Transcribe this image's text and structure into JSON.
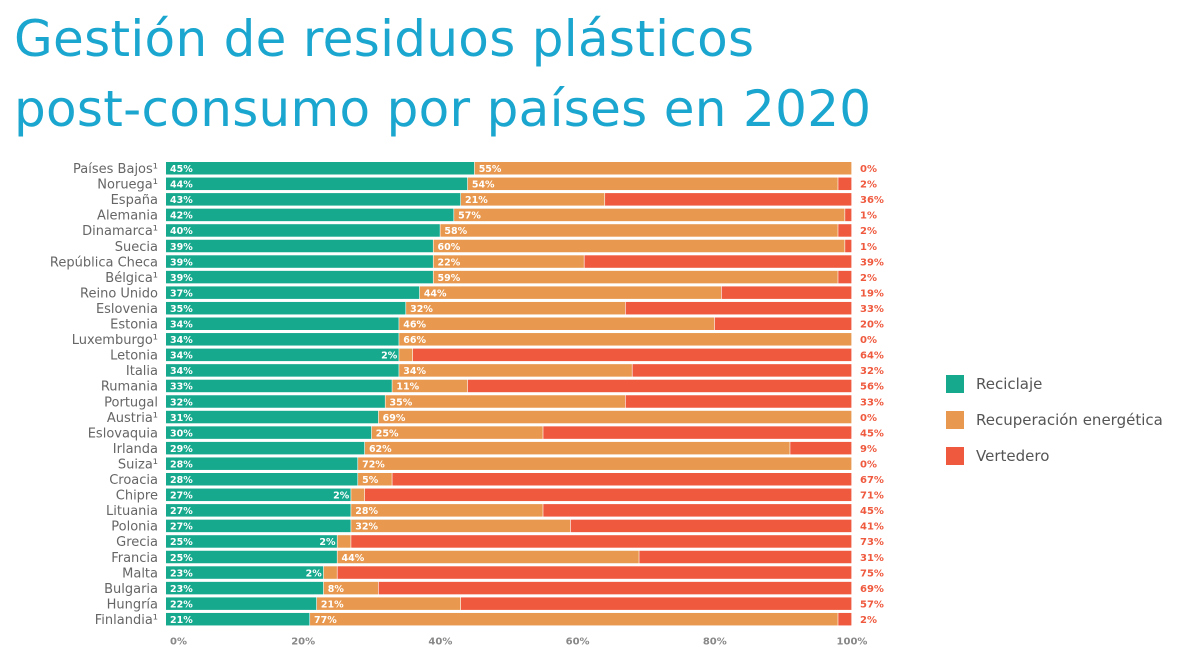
{
  "title_line1": "Gestión de residuos plásticos",
  "title_line2": "post-consumo por países en 2020",
  "colors": {
    "title": "#1aa6cf",
    "reciclaje": "#17a98e",
    "recuperacion": "#e8994f",
    "vertedero": "#ef5a3f",
    "label_right": "#ef5a3f"
  },
  "legend": [
    "Reciclaje",
    "Recuperación energética",
    "Vertedero"
  ],
  "chart_data": {
    "type": "bar",
    "orientation": "horizontal",
    "stacked": true,
    "xlim": [
      0,
      100
    ],
    "xticks": [
      "0%",
      "20%",
      "40%",
      "60%",
      "80%",
      "100%"
    ],
    "grid": false,
    "legend_position": "right",
    "categories": [
      "Países Bajos¹",
      "Noruega¹",
      "España",
      "Alemania",
      "Dinamarca¹",
      "Suecia",
      "República Checa",
      "Bélgica¹",
      "Reino Unido",
      "Eslovenia",
      "Estonia",
      "Luxemburgo¹",
      "Letonia",
      "Italia",
      "Rumania",
      "Portugal",
      "Austria¹",
      "Eslovaquia",
      "Irlanda",
      "Suiza¹",
      "Croacia",
      "Chipre",
      "Lituania",
      "Polonia",
      "Grecia",
      "Francia",
      "Malta",
      "Bulgaria",
      "Hungría",
      "Finlandia¹"
    ],
    "series": [
      {
        "name": "Reciclaje",
        "values": [
          45,
          44,
          43,
          42,
          40,
          39,
          39,
          39,
          37,
          35,
          34,
          34,
          34,
          34,
          33,
          32,
          31,
          30,
          29,
          28,
          28,
          27,
          27,
          27,
          25,
          25,
          23,
          23,
          22,
          21
        ]
      },
      {
        "name": "Recuperación energética",
        "values": [
          55,
          54,
          21,
          57,
          58,
          60,
          22,
          59,
          44,
          32,
          46,
          66,
          2,
          34,
          11,
          35,
          69,
          25,
          62,
          72,
          5,
          2,
          28,
          32,
          2,
          44,
          2,
          8,
          21,
          77
        ]
      },
      {
        "name": "Vertedero",
        "values": [
          0,
          2,
          36,
          1,
          2,
          1,
          39,
          2,
          19,
          33,
          20,
          0,
          64,
          32,
          56,
          33,
          0,
          45,
          9,
          0,
          67,
          71,
          45,
          41,
          73,
          31,
          75,
          69,
          57,
          2
        ]
      }
    ]
  }
}
